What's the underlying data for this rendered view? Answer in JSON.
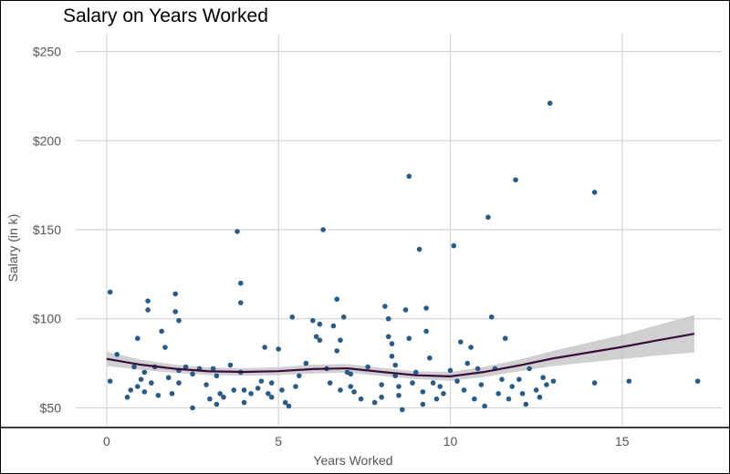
{
  "chart_data": {
    "type": "scatter",
    "title": "Salary on Years Worked",
    "xlabel": "Years Worked",
    "ylabel": "Salary (in k)",
    "xlim": [
      -0.9,
      17.9
    ],
    "ylim": [
      40,
      260
    ],
    "x_ticks": [
      0,
      5,
      10,
      15
    ],
    "x_tick_labels": [
      "0",
      "5",
      "10",
      "15"
    ],
    "y_ticks": [
      50,
      100,
      150,
      200,
      250
    ],
    "y_tick_labels": [
      "$50",
      "$100",
      "$150",
      "$200",
      "$250"
    ],
    "grid": true,
    "legend": "none",
    "colors": {
      "points": "#2a5a86",
      "smooth": "#3b0b3f",
      "ribbon": "#c8c8c8",
      "grid": "#d5d5d5"
    },
    "points": [
      [
        0.1,
        115
      ],
      [
        0.1,
        65
      ],
      [
        0.3,
        80
      ],
      [
        0.6,
        56
      ],
      [
        0.7,
        60
      ],
      [
        0.8,
        73
      ],
      [
        0.9,
        62
      ],
      [
        0.9,
        89
      ],
      [
        1.0,
        66
      ],
      [
        1.1,
        70
      ],
      [
        1.1,
        59
      ],
      [
        1.2,
        110
      ],
      [
        1.2,
        105
      ],
      [
        1.3,
        64
      ],
      [
        1.4,
        73
      ],
      [
        1.5,
        57
      ],
      [
        1.6,
        93
      ],
      [
        1.7,
        84
      ],
      [
        1.8,
        67
      ],
      [
        1.9,
        58
      ],
      [
        2.0,
        114
      ],
      [
        2.0,
        104
      ],
      [
        2.1,
        99
      ],
      [
        2.1,
        71
      ],
      [
        2.1,
        64
      ],
      [
        2.3,
        73
      ],
      [
        2.5,
        69
      ],
      [
        2.5,
        50
      ],
      [
        2.7,
        72
      ],
      [
        2.9,
        63
      ],
      [
        3.0,
        55
      ],
      [
        3.1,
        72
      ],
      [
        3.2,
        68
      ],
      [
        3.2,
        52
      ],
      [
        3.3,
        58
      ],
      [
        3.4,
        56
      ],
      [
        3.6,
        74
      ],
      [
        3.7,
        60
      ],
      [
        3.8,
        149
      ],
      [
        3.9,
        120
      ],
      [
        3.9,
        109
      ],
      [
        3.9,
        70
      ],
      [
        4.0,
        60
      ],
      [
        4.0,
        53
      ],
      [
        4.2,
        58
      ],
      [
        4.4,
        61
      ],
      [
        4.5,
        65
      ],
      [
        4.6,
        84
      ],
      [
        4.7,
        58
      ],
      [
        4.8,
        56
      ],
      [
        4.8,
        64
      ],
      [
        5.0,
        83
      ],
      [
        5.1,
        60
      ],
      [
        5.2,
        53
      ],
      [
        5.3,
        51
      ],
      [
        5.4,
        101
      ],
      [
        5.5,
        62
      ],
      [
        5.6,
        68
      ],
      [
        5.8,
        75
      ],
      [
        6.0,
        99
      ],
      [
        6.1,
        90
      ],
      [
        6.2,
        97
      ],
      [
        6.2,
        88
      ],
      [
        6.3,
        150
      ],
      [
        6.4,
        72
      ],
      [
        6.5,
        64
      ],
      [
        6.6,
        96
      ],
      [
        6.7,
        111
      ],
      [
        6.7,
        82
      ],
      [
        6.8,
        88
      ],
      [
        6.8,
        60
      ],
      [
        6.9,
        101
      ],
      [
        7.0,
        70
      ],
      [
        7.1,
        69
      ],
      [
        7.1,
        62
      ],
      [
        7.2,
        59
      ],
      [
        7.4,
        55
      ],
      [
        7.6,
        73
      ],
      [
        7.8,
        53
      ],
      [
        8.0,
        63
      ],
      [
        8.0,
        56
      ],
      [
        8.1,
        107
      ],
      [
        8.2,
        100
      ],
      [
        8.2,
        90
      ],
      [
        8.3,
        86
      ],
      [
        8.3,
        79
      ],
      [
        8.4,
        74
      ],
      [
        8.4,
        68
      ],
      [
        8.5,
        62
      ],
      [
        8.5,
        57
      ],
      [
        8.6,
        49
      ],
      [
        8.7,
        105
      ],
      [
        8.8,
        180
      ],
      [
        8.8,
        89
      ],
      [
        8.9,
        64
      ],
      [
        9.0,
        70
      ],
      [
        9.1,
        139
      ],
      [
        9.2,
        59
      ],
      [
        9.2,
        52
      ],
      [
        9.3,
        106
      ],
      [
        9.3,
        93
      ],
      [
        9.4,
        78
      ],
      [
        9.5,
        64
      ],
      [
        9.6,
        55
      ],
      [
        9.7,
        62
      ],
      [
        9.8,
        58
      ],
      [
        10.0,
        71
      ],
      [
        10.1,
        141
      ],
      [
        10.2,
        65
      ],
      [
        10.3,
        87
      ],
      [
        10.4,
        60
      ],
      [
        10.5,
        75
      ],
      [
        10.6,
        84
      ],
      [
        10.7,
        55
      ],
      [
        10.8,
        72
      ],
      [
        10.9,
        63
      ],
      [
        11.0,
        51
      ],
      [
        11.1,
        157
      ],
      [
        11.2,
        101
      ],
      [
        11.3,
        72
      ],
      [
        11.4,
        58
      ],
      [
        11.5,
        66
      ],
      [
        11.6,
        89
      ],
      [
        11.7,
        55
      ],
      [
        11.8,
        62
      ],
      [
        11.9,
        178
      ],
      [
        12.0,
        66
      ],
      [
        12.1,
        58
      ],
      [
        12.2,
        52
      ],
      [
        12.3,
        72
      ],
      [
        12.5,
        60
      ],
      [
        12.6,
        56
      ],
      [
        12.7,
        67
      ],
      [
        12.8,
        63
      ],
      [
        12.9,
        221
      ],
      [
        13.0,
        65
      ],
      [
        14.2,
        171
      ],
      [
        14.2,
        64
      ],
      [
        15.2,
        65
      ],
      [
        17.2,
        65
      ]
    ],
    "smooth_x": [
      0,
      1,
      2,
      3,
      4,
      5,
      6,
      7,
      8,
      9,
      10,
      11,
      12,
      13,
      14,
      15,
      16,
      17.1
    ],
    "smooth_y": [
      77.5,
      74.2,
      71.9,
      70.5,
      70.2,
      70.6,
      71.8,
      72.2,
      70.2,
      68.3,
      67.7,
      70.2,
      73.8,
      77.8,
      81.0,
      84.2,
      87.8,
      91.6
    ],
    "ribbon_halfwidth": [
      4.0,
      2.8,
      2.3,
      2.1,
      2.1,
      2.2,
      2.5,
      2.4,
      2.3,
      2.2,
      2.5,
      2.9,
      3.3,
      4.3,
      5.5,
      6.8,
      8.5,
      10.5
    ]
  }
}
